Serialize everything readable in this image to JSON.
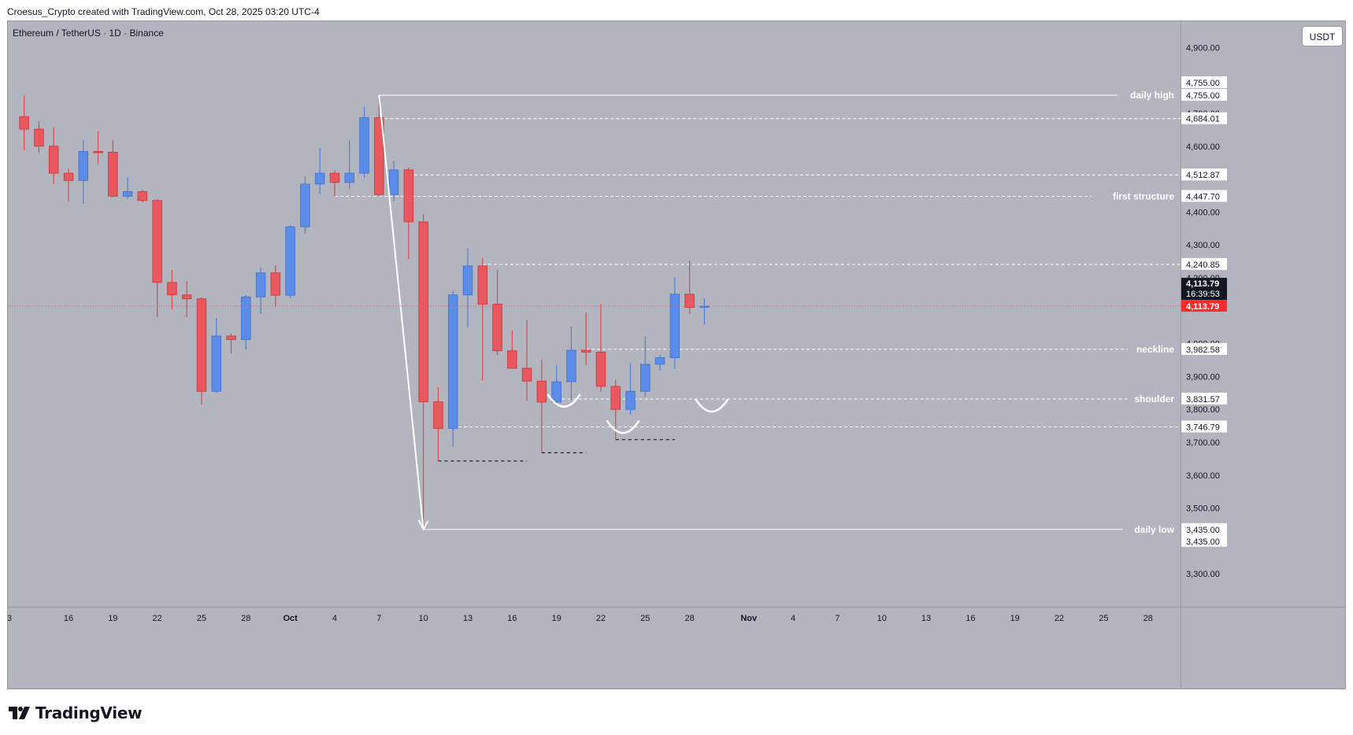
{
  "header": {
    "credit": "Croesus_Crypto created with TradingView.com, Oct 28, 2025 03:20 UTC-4"
  },
  "chart": {
    "symbol_title": "Ethereum / TetherUS · 1D · Binance",
    "currency_label": "USDT",
    "colors": {
      "background": "#b2b5be",
      "up": "#5b8de8",
      "down": "#e8585e",
      "wick_up": "#4f7fd6",
      "wick_down": "#d94a52",
      "level_line": "#ffffff",
      "last_price_label": "#ff2a2a",
      "last_price_line": "#e8585e",
      "countdown_bg": "#131722"
    }
  },
  "footer": {
    "logo_text": "TradingView",
    "logo_icon": "tradingview-logo-icon"
  },
  "chart_data": {
    "type": "candlestick",
    "y_axis": {
      "range": [
        3200,
        4980
      ],
      "ticks": [
        "3,300.00",
        "3,500.00",
        "3,600.00",
        "3,700.00",
        "3,800.00",
        "3,900.00",
        "4,000.00",
        "4,200.00",
        "4,300.00",
        "4,400.00",
        "4,600.00",
        "4,700.00",
        "4,900.00"
      ],
      "tick_values": [
        3300,
        3500,
        3600,
        3700,
        3800,
        3900,
        4000,
        4200,
        4300,
        4400,
        4600,
        4700,
        4900
      ]
    },
    "x_axis": {
      "ticks": [
        "3",
        "16",
        "19",
        "22",
        "25",
        "28",
        "Oct",
        "4",
        "7",
        "10",
        "13",
        "16",
        "19",
        "22",
        "25",
        "28",
        "Nov",
        "4",
        "7",
        "10",
        "13",
        "16",
        "19",
        "22",
        "25",
        "28"
      ],
      "tick_index": [
        -1,
        3,
        6,
        9,
        12,
        15,
        18,
        21,
        24,
        27,
        30,
        33,
        36,
        39,
        42,
        45,
        49,
        52,
        55,
        58,
        61,
        64,
        67,
        70,
        73,
        76
      ],
      "index_range": [
        -1.1,
        78.2
      ]
    },
    "candles": [
      {
        "o": 4690,
        "h": 4755,
        "l": 4588,
        "c": 4652
      },
      {
        "o": 4652,
        "h": 4676,
        "l": 4580,
        "c": 4600
      },
      {
        "o": 4600,
        "h": 4658,
        "l": 4485,
        "c": 4518
      },
      {
        "o": 4518,
        "h": 4532,
        "l": 4432,
        "c": 4496
      },
      {
        "o": 4496,
        "h": 4618,
        "l": 4425,
        "c": 4584
      },
      {
        "o": 4584,
        "h": 4646,
        "l": 4546,
        "c": 4582
      },
      {
        "o": 4582,
        "h": 4618,
        "l": 4445,
        "c": 4448
      },
      {
        "o": 4448,
        "h": 4505,
        "l": 4440,
        "c": 4462
      },
      {
        "o": 4462,
        "h": 4468,
        "l": 4430,
        "c": 4435
      },
      {
        "o": 4435,
        "h": 4440,
        "l": 4080,
        "c": 4186
      },
      {
        "o": 4186,
        "h": 4224,
        "l": 4104,
        "c": 4148
      },
      {
        "o": 4148,
        "h": 4190,
        "l": 4080,
        "c": 4136
      },
      {
        "o": 4136,
        "h": 4140,
        "l": 3815,
        "c": 3855
      },
      {
        "o": 3855,
        "h": 4078,
        "l": 3850,
        "c": 4023
      },
      {
        "o": 4023,
        "h": 4030,
        "l": 3970,
        "c": 4012
      },
      {
        "o": 4012,
        "h": 4148,
        "l": 3982,
        "c": 4142
      },
      {
        "o": 4142,
        "h": 4232,
        "l": 4090,
        "c": 4215
      },
      {
        "o": 4215,
        "h": 4238,
        "l": 4112,
        "c": 4147
      },
      {
        "o": 4147,
        "h": 4360,
        "l": 4138,
        "c": 4355
      },
      {
        "o": 4355,
        "h": 4508,
        "l": 4335,
        "c": 4485
      },
      {
        "o": 4485,
        "h": 4595,
        "l": 4455,
        "c": 4518
      },
      {
        "o": 4518,
        "h": 4526,
        "l": 4447,
        "c": 4490
      },
      {
        "o": 4490,
        "h": 4618,
        "l": 4470,
        "c": 4518
      },
      {
        "o": 4518,
        "h": 4720,
        "l": 4504,
        "c": 4687
      },
      {
        "o": 4687,
        "h": 4755,
        "l": 4448,
        "c": 4453
      },
      {
        "o": 4453,
        "h": 4555,
        "l": 4432,
        "c": 4528
      },
      {
        "o": 4528,
        "h": 4535,
        "l": 4256,
        "c": 4370
      },
      {
        "o": 4370,
        "h": 4394,
        "l": 3435,
        "c": 3823
      },
      {
        "o": 3823,
        "h": 3868,
        "l": 3643,
        "c": 3742
      },
      {
        "o": 3742,
        "h": 4160,
        "l": 3686,
        "c": 4148
      },
      {
        "o": 4148,
        "h": 4290,
        "l": 4050,
        "c": 4236
      },
      {
        "o": 4236,
        "h": 4260,
        "l": 3888,
        "c": 4120
      },
      {
        "o": 4120,
        "h": 4224,
        "l": 3965,
        "c": 3978
      },
      {
        "o": 3978,
        "h": 4040,
        "l": 3925,
        "c": 3925
      },
      {
        "o": 3925,
        "h": 4072,
        "l": 3826,
        "c": 3886
      },
      {
        "o": 3886,
        "h": 3952,
        "l": 3668,
        "c": 3822
      },
      {
        "o": 3822,
        "h": 3935,
        "l": 3810,
        "c": 3884
      },
      {
        "o": 3884,
        "h": 4052,
        "l": 3828,
        "c": 3980
      },
      {
        "o": 3980,
        "h": 4095,
        "l": 3935,
        "c": 3974
      },
      {
        "o": 3974,
        "h": 4120,
        "l": 3853,
        "c": 3870
      },
      {
        "o": 3870,
        "h": 3890,
        "l": 3708,
        "c": 3800
      },
      {
        "o": 3800,
        "h": 3940,
        "l": 3784,
        "c": 3855
      },
      {
        "o": 3855,
        "h": 4022,
        "l": 3838,
        "c": 3937
      },
      {
        "o": 3937,
        "h": 3965,
        "l": 3918,
        "c": 3957
      },
      {
        "o": 3957,
        "h": 4202,
        "l": 3923,
        "c": 4150
      },
      {
        "o": 4150,
        "h": 4252,
        "l": 4090,
        "c": 4110
      },
      {
        "o": 4110,
        "h": 4138,
        "l": 4058,
        "c": 4113.79
      }
    ],
    "levels": [
      {
        "price": 4755.0,
        "label": "daily high",
        "axis_label": "4,755.00",
        "style": "solid"
      },
      {
        "price": 4684.01,
        "label": "",
        "axis_label": "4,684.01",
        "style": "dashed"
      },
      {
        "price": 4512.87,
        "label": "",
        "axis_label": "4,512.87",
        "style": "dashed"
      },
      {
        "price": 4447.7,
        "label": "first structure",
        "axis_label": "4,447.70",
        "style": "dashed"
      },
      {
        "price": 4240.85,
        "label": "",
        "axis_label": "4,240.85",
        "style": "dashed"
      },
      {
        "price": 3982.58,
        "label": "neckline",
        "axis_label": "3,982.58",
        "style": "dashed"
      },
      {
        "price": 3831.57,
        "label": "shoulder",
        "axis_label": "3,831.57",
        "style": "dashed"
      },
      {
        "price": 3746.79,
        "label": "",
        "axis_label": "3,746.79",
        "style": "dashed"
      },
      {
        "price": 3435.0,
        "label": "daily low",
        "axis_label": "3,435.00",
        "style": "solid"
      }
    ],
    "extra_axis_labels": [
      {
        "price": 4755.0,
        "text": "4,755.00"
      },
      {
        "price": 3435.0,
        "text": "3,435.00"
      }
    ],
    "last_price": {
      "price": 4113.79,
      "text": "4,113.79",
      "countdown": "16:39:53",
      "label_text": "4,113.79"
    },
    "black_dashed_levels": [
      {
        "price": 3643,
        "from": 28,
        "to": 34
      },
      {
        "price": 3668,
        "from": 35,
        "to": 38
      },
      {
        "price": 3708,
        "from": 40,
        "to": 44
      }
    ],
    "arcs": [
      {
        "center": 36.5,
        "price": 3825
      },
      {
        "center": 40.5,
        "price": 3745
      },
      {
        "center": 46.5,
        "price": 3810
      }
    ],
    "arrow": {
      "from": {
        "i": 24,
        "price": 4755
      },
      "to": {
        "i": 27,
        "price": 3435
      }
    }
  }
}
